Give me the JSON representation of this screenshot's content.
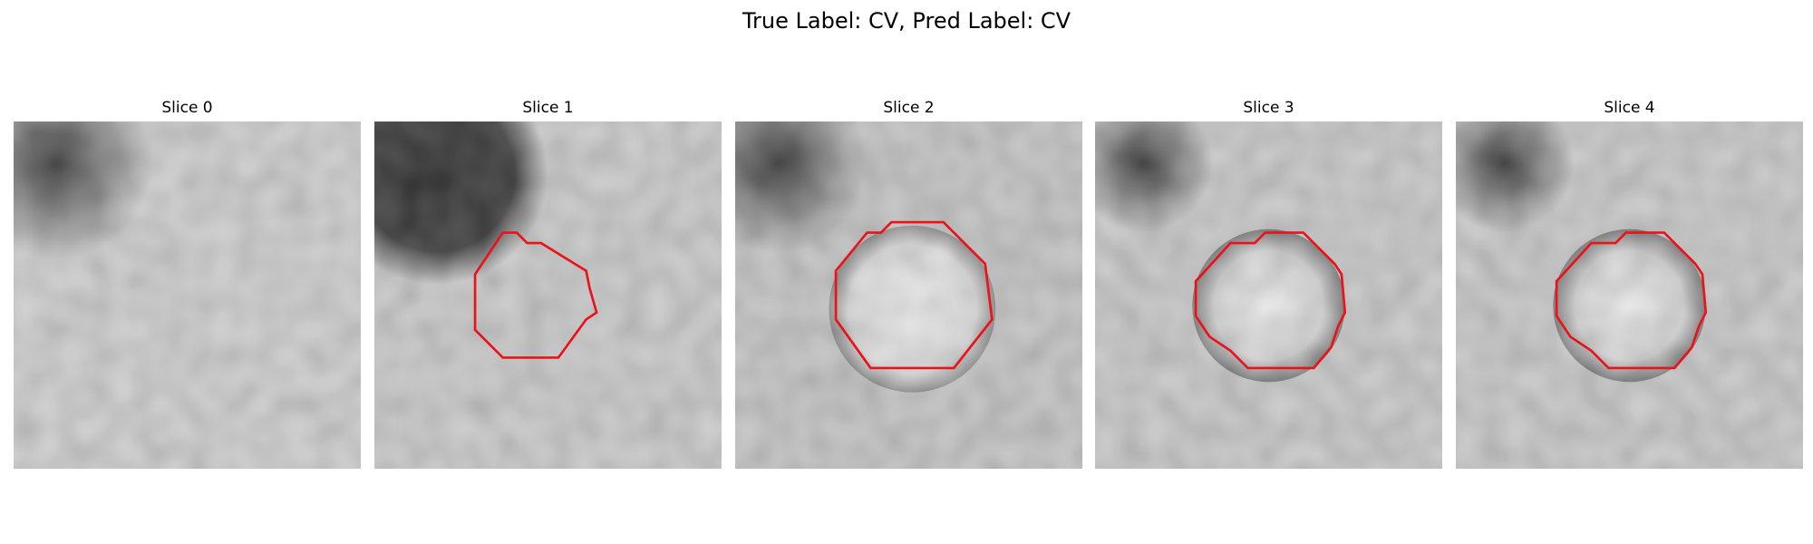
{
  "figure": {
    "title": "True Label: CV, Pred Label: CV",
    "contour_color": "#e8141a",
    "panels": [
      {
        "label": "Slice 0"
      },
      {
        "label": "Slice 1"
      },
      {
        "label": "Slice 2"
      },
      {
        "label": "Slice 3"
      },
      {
        "label": "Slice 4"
      }
    ]
  }
}
